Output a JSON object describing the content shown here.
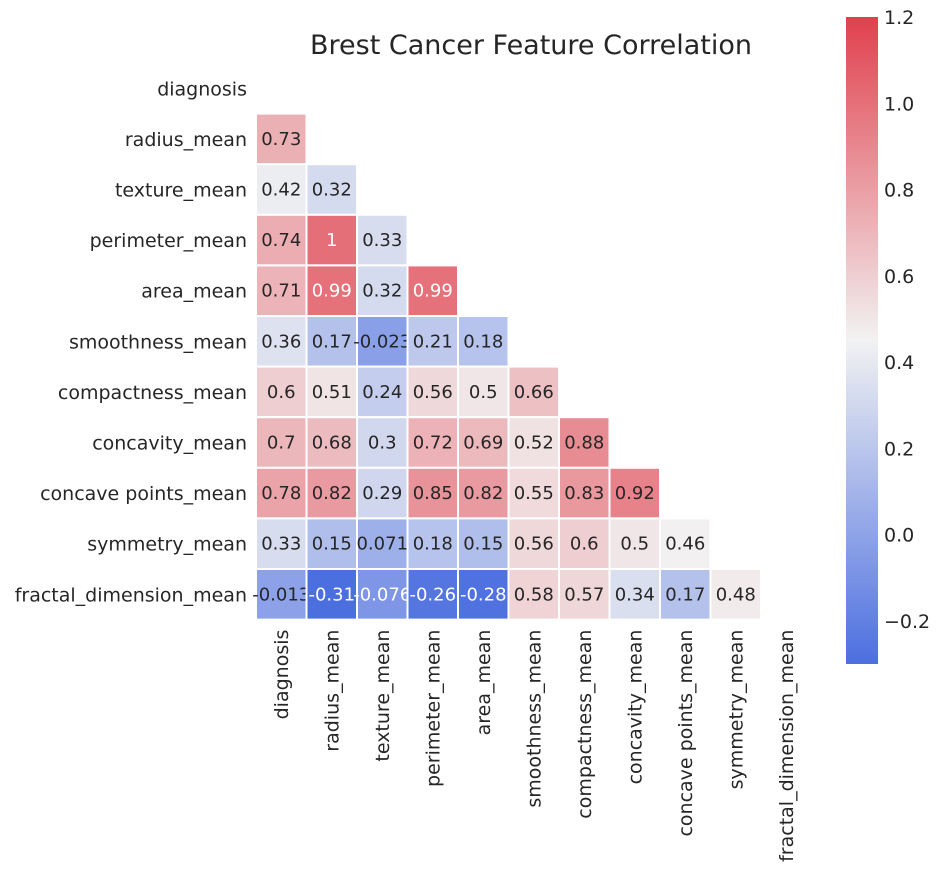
{
  "chart_data": {
    "type": "heatmap",
    "title": "Brest Cancer Feature Correlation",
    "features": [
      "diagnosis",
      "radius_mean",
      "texture_mean",
      "perimeter_mean",
      "area_mean",
      "smoothness_mean",
      "compactness_mean",
      "concavity_mean",
      "concave points_mean",
      "symmetry_mean",
      "fractal_dimension_mean"
    ],
    "mask": "upper-triangle-and-diagonal",
    "annotations": [
      [],
      [
        "0.73"
      ],
      [
        "0.42",
        "0.32"
      ],
      [
        "0.74",
        "1",
        "0.33"
      ],
      [
        "0.71",
        "0.99",
        "0.32",
        "0.99"
      ],
      [
        "0.36",
        "0.17",
        "-0.023",
        "0.21",
        "0.18"
      ],
      [
        "0.6",
        "0.51",
        "0.24",
        "0.56",
        "0.5",
        "0.66"
      ],
      [
        "0.7",
        "0.68",
        "0.3",
        "0.72",
        "0.69",
        "0.52",
        "0.88"
      ],
      [
        "0.78",
        "0.82",
        "0.29",
        "0.85",
        "0.82",
        "0.55",
        "0.83",
        "0.92"
      ],
      [
        "0.33",
        "0.15",
        "0.071",
        "0.18",
        "0.15",
        "0.56",
        "0.6",
        "0.5",
        "0.46"
      ],
      [
        "-0.013",
        "-0.31",
        "-0.076",
        "-0.26",
        "-0.28",
        "0.58",
        "0.57",
        "0.34",
        "0.17",
        "0.48"
      ]
    ],
    "colorbar": {
      "vmin": -0.3,
      "vmax": 1.2,
      "ticks": [
        1.2,
        1.0,
        0.8,
        0.6,
        0.4,
        0.2,
        0.0,
        -0.2
      ],
      "tick_labels": [
        "1.2",
        "1.0",
        "0.8",
        "0.6",
        "0.4",
        "0.2",
        "0.0",
        "−0.2"
      ],
      "low_color": "#4c6fe0",
      "mid_color": "#f2f2f2",
      "high_color": "#e0404d"
    },
    "cell_border_color": "#ffffff",
    "grid": false
  }
}
